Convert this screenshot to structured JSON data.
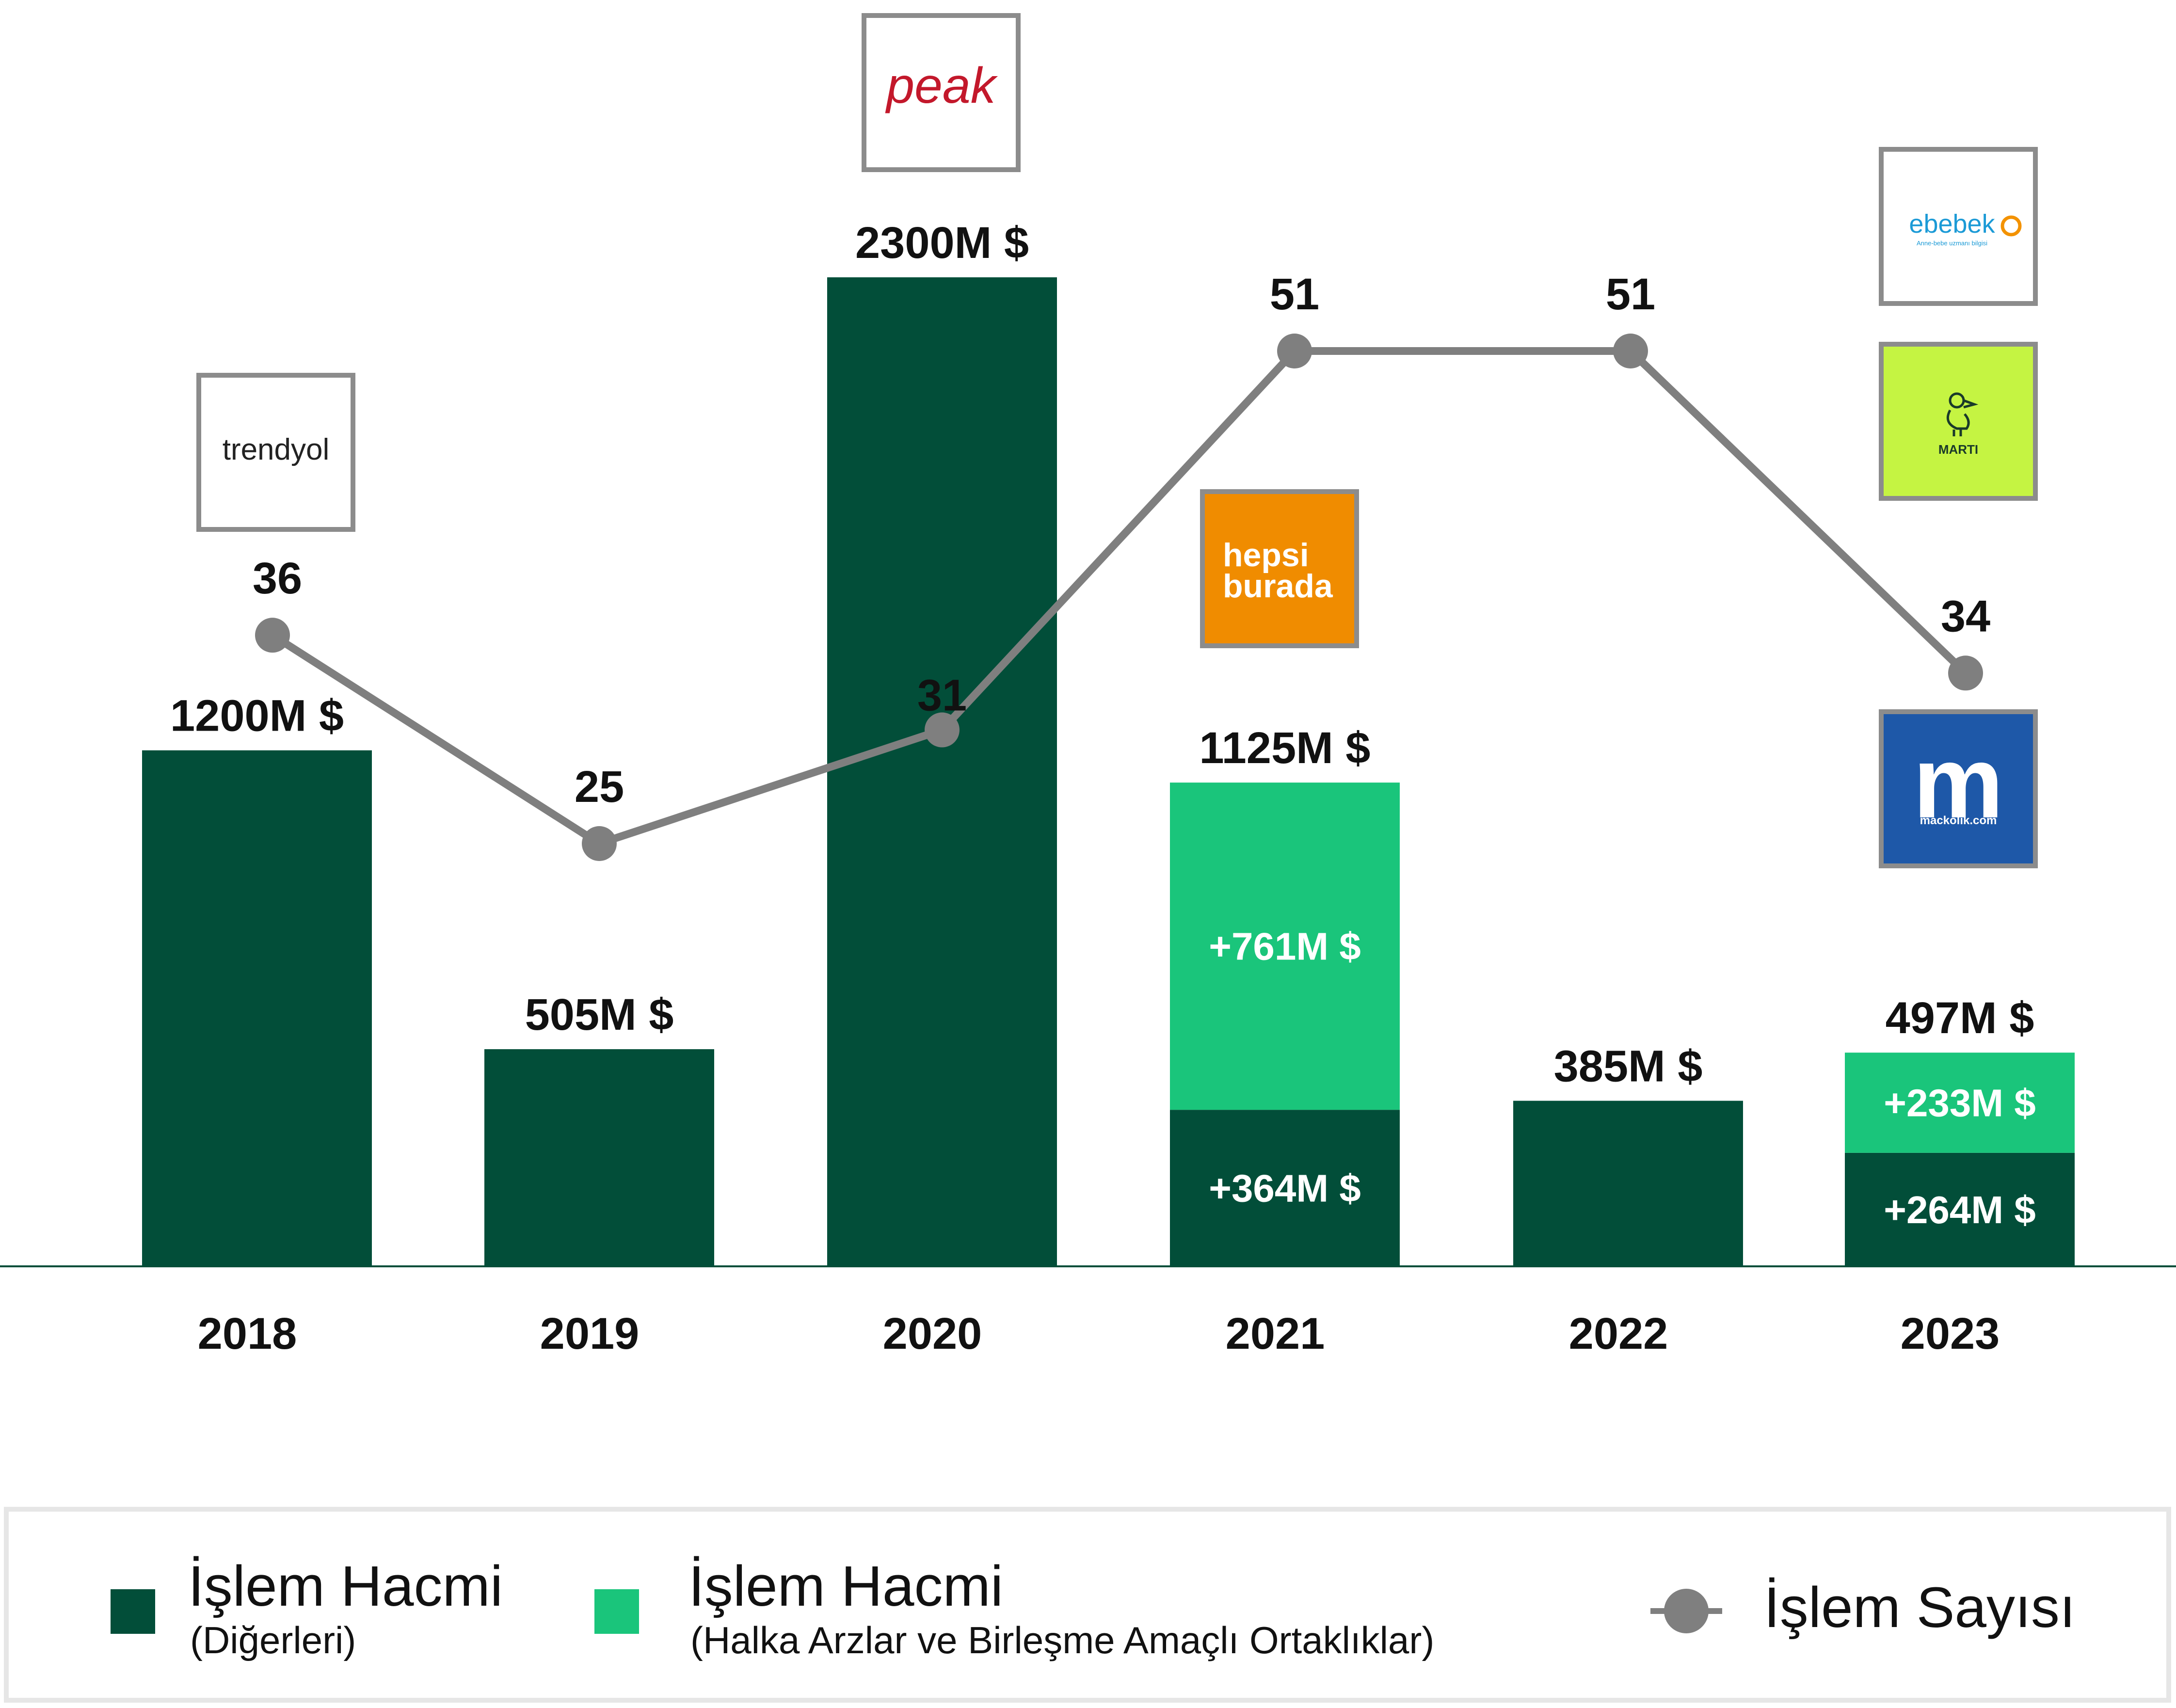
{
  "chart_data": {
    "type": "bar",
    "categories": [
      "2018",
      "2019",
      "2020",
      "2021",
      "2022",
      "2023"
    ],
    "totals": [
      "1200M $",
      "505M $",
      "2300M $",
      "1125M $",
      "385M $",
      "497M $"
    ],
    "series": [
      {
        "name": "İşlem Hacmi (Diğerleri)",
        "values": [
          1200,
          505,
          2300,
          364,
          385,
          264
        ],
        "labels": [
          "",
          "",
          "",
          "+364M $",
          "",
          "+264M $"
        ]
      },
      {
        "name": "İşlem Hacmi (Halka Arzlar ve Birleşme Amaçlı Ortaklıklar)",
        "values": [
          0,
          0,
          0,
          761,
          0,
          233
        ],
        "labels": [
          "",
          "",
          "",
          "+761M $",
          "",
          "+233M $"
        ]
      },
      {
        "name": "İşlem Sayısı",
        "type": "line",
        "values": [
          36,
          25,
          31,
          51,
          51,
          34
        ],
        "labels": [
          "36",
          "25",
          "31",
          "51",
          "51",
          "34"
        ]
      }
    ],
    "ylim": [
      0,
      2300
    ],
    "line_ylim": [
      0,
      72
    ],
    "colors": {
      "others": "#024e39",
      "ipo": "#1ac57b",
      "line": "#7f7f7f"
    }
  },
  "logos": [
    {
      "text": "trendyol",
      "year": "2018"
    },
    {
      "text": "peak",
      "year": "2020"
    },
    {
      "text": "hepsi burada",
      "year": "2021"
    },
    {
      "text": "ebebek",
      "sub": "Anne-bebe uzmanı bilgisi",
      "year": "2023"
    },
    {
      "text": "MARTI",
      "year": "2023"
    },
    {
      "text": "m",
      "sub": "mackolik.com",
      "year": "2023"
    }
  ],
  "legend": {
    "items": [
      {
        "title": "İşlem Hacmi",
        "sub": "(Diğerleri)",
        "color": "#024e39",
        "icon": "square"
      },
      {
        "title": "İşlem Hacmi",
        "sub": "(Halka Arzlar ve Birleşme Amaçlı Ortaklıklar)",
        "color": "#1ac57b",
        "icon": "square"
      },
      {
        "title": "İşlem Sayısı",
        "color": "#7f7f7f",
        "icon": "line-with-dot"
      }
    ]
  }
}
